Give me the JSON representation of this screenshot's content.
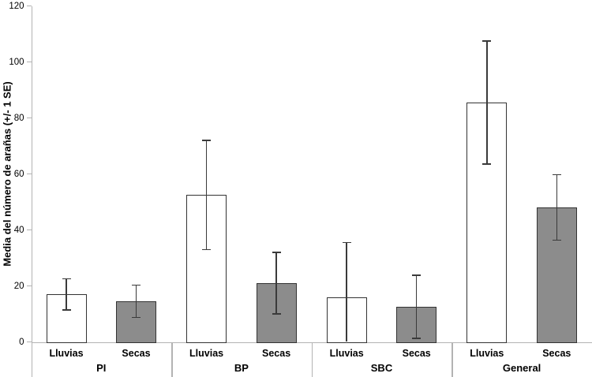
{
  "chart_data": {
    "type": "bar",
    "title": "",
    "ylabel": "Media del número de arañas (+/- 1 SE)",
    "xlabel": "",
    "ylim": [
      0,
      120
    ],
    "yticks": [
      0,
      20,
      40,
      60,
      80,
      100,
      120
    ],
    "grid": false,
    "legend_position": "none",
    "error_bar_note": "+/- 1 SE; lower whisker clipped at 0 when below axis",
    "categories": [
      "PI",
      "BP",
      "SBC",
      "General"
    ],
    "series": [
      {
        "name": "Lluvias",
        "fill": "#ffffff",
        "means": [
          17,
          52.5,
          16,
          85.5
        ],
        "se": [
          5.5,
          19.5,
          19.5,
          22
        ]
      },
      {
        "name": "Secas",
        "fill": "#8c8c8c",
        "means": [
          14.5,
          21,
          12.5,
          48
        ],
        "se": [
          5.8,
          11,
          11.3,
          11.7
        ]
      }
    ],
    "colors": {
      "bar_border": "#333333",
      "error_bar": "#3a3a3a",
      "axis_line": "#b3b3b3",
      "text": "#000000"
    }
  }
}
